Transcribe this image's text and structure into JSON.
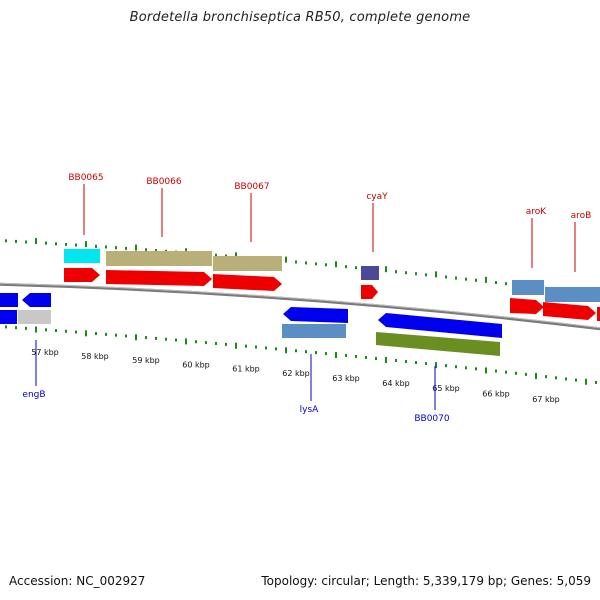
{
  "title": "Bordetella bronchiseptica RB50, complete genome",
  "footer": {
    "accession": "Accession: NC_002927",
    "summary": "Topology: circular; Length: 5,339,179 bp; Genes: 5,059"
  },
  "colors": {
    "tick": "#1a8a1a",
    "backbone": "#888888",
    "forward_label": "#cc0000",
    "reverse_label": "#0000cc",
    "cds_red": "#ee0000",
    "gene_blue": "#0000ee",
    "olive": "#b8b078",
    "cyan": "#00e5ee",
    "steel": "#5b8fc4",
    "grey": "#c8c8c8",
    "slate": "#4a4a99",
    "green": "#6b8e23"
  },
  "scale_labels": [
    "57 kbp",
    "58 kbp",
    "59 kbp",
    "60 kbp",
    "61 kbp",
    "62 kbp",
    "63 kbp",
    "64 kbp",
    "65 kbp",
    "66 kbp",
    "67 kbp"
  ],
  "forward_genes": [
    "BB0065",
    "BB0066",
    "BB0067",
    "cyaY",
    "aroK",
    "aroB"
  ],
  "reverse_genes": [
    "engB",
    "lysA",
    "BB0070"
  ]
}
